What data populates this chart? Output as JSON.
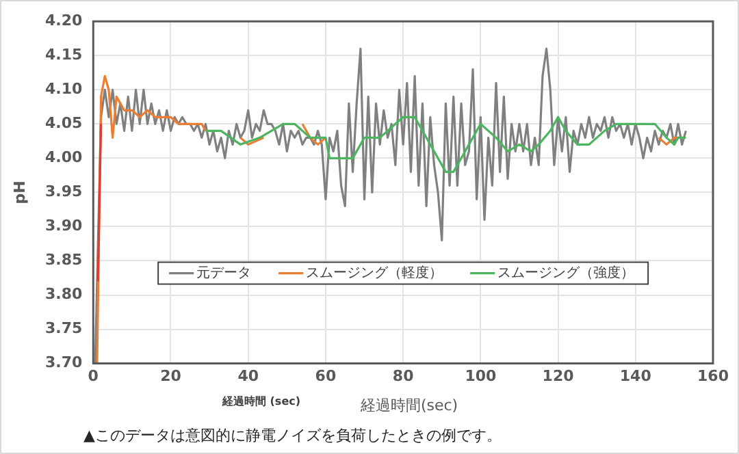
{
  "chart_data": {
    "type": "line",
    "xlabel": "経過時間(sec)",
    "ylabel": "pH",
    "annotations": [
      "経過時間 (sec)",
      "▲このデータは意図的に静電ノイズを負荷したときの例です。"
    ],
    "xlim": [
      0,
      160
    ],
    "xticks": [
      0,
      20,
      40,
      60,
      80,
      100,
      120,
      140,
      160
    ],
    "ylim": [
      3.7,
      4.2
    ],
    "yticks": [
      {
        "value": 3.7,
        "label": "3.70"
      },
      {
        "value": 3.75,
        "label": "3.75"
      },
      {
        "value": 3.8,
        "label": "3.80"
      },
      {
        "value": 3.85,
        "label": "3.85"
      },
      {
        "value": 3.9,
        "label": "3.90"
      },
      {
        "value": 3.95,
        "label": "3.95"
      },
      {
        "value": 4.0,
        "label": "4.00"
      },
      {
        "value": 4.05,
        "label": "4.05"
      },
      {
        "value": 4.1,
        "label": "4.10"
      },
      {
        "value": 4.15,
        "label": "4.15"
      },
      {
        "value": 4.2,
        "label": "4.20"
      }
    ],
    "grid": true,
    "legend": "bottom",
    "marker": "none",
    "line_style": "solid",
    "series": [
      {
        "name": "元データ",
        "color": "#808080",
        "x": [
          0.5,
          2,
          3,
          4,
          5,
          6,
          7,
          8,
          9,
          10,
          11,
          12,
          13,
          14,
          15,
          16,
          17,
          18,
          19,
          20,
          21,
          22,
          23,
          24,
          25,
          26,
          27,
          28,
          29,
          30,
          31,
          32,
          33,
          34,
          35,
          36,
          37,
          38,
          39,
          40,
          41,
          42,
          43,
          44,
          45,
          46,
          47,
          48,
          49,
          50,
          51,
          52,
          53,
          54,
          55,
          56,
          57,
          58,
          59,
          60,
          61,
          62,
          63,
          64,
          65,
          66,
          67,
          68,
          69,
          70,
          71,
          72,
          73,
          74,
          75,
          76,
          77,
          78,
          79,
          80,
          81,
          82,
          83,
          84,
          85,
          86,
          87,
          88,
          89,
          90,
          91,
          92,
          93,
          94,
          95,
          96,
          97,
          98,
          99,
          100,
          101,
          102,
          103,
          104,
          105,
          106,
          107,
          108,
          109,
          110,
          111,
          112,
          113,
          114,
          115,
          116,
          117,
          118,
          119,
          120,
          121,
          122,
          123,
          124,
          125,
          126,
          127,
          128,
          129,
          130,
          131,
          132,
          133,
          134,
          135,
          136,
          137,
          138,
          139,
          140,
          141,
          142,
          143,
          144,
          145,
          146,
          147,
          148,
          149,
          150,
          151,
          152,
          153
        ],
        "values": [
          3.7,
          4.06,
          4.1,
          4.06,
          4.1,
          4.05,
          4.08,
          4.04,
          4.09,
          4.04,
          4.1,
          4.05,
          4.1,
          4.05,
          4.08,
          4.05,
          4.07,
          4.04,
          4.07,
          4.04,
          4.06,
          4.05,
          4.06,
          4.05,
          4.05,
          4.04,
          4.05,
          4.03,
          4.05,
          4.02,
          4.04,
          4.01,
          4.03,
          4.0,
          4.04,
          4.02,
          4.05,
          4.03,
          4.04,
          4.07,
          4.03,
          4.05,
          4.04,
          4.07,
          4.05,
          4.05,
          4.04,
          4.02,
          4.05,
          4.01,
          4.04,
          4.03,
          4.04,
          4.02,
          4.03,
          4.03,
          4.02,
          4.04,
          4.02,
          3.94,
          4.03,
          4.01,
          4.04,
          3.96,
          3.93,
          4.08,
          3.98,
          4.08,
          4.16,
          3.94,
          4.09,
          3.95,
          4.08,
          4.02,
          4.07,
          4.03,
          4.05,
          3.99,
          4.1,
          4.02,
          4.11,
          3.98,
          4.12,
          3.96,
          4.08,
          3.93,
          4.06,
          3.99,
          3.95,
          3.88,
          4.08,
          3.96,
          4.09,
          3.96,
          4.08,
          3.99,
          4.01,
          4.13,
          3.94,
          4.06,
          3.91,
          4.03,
          3.96,
          4.11,
          3.98,
          4.09,
          3.97,
          4.05,
          4.01,
          4.05,
          4.01,
          4.05,
          3.99,
          4.03,
          3.99,
          4.12,
          4.16,
          4.1,
          3.99,
          4.06,
          4.01,
          4.06,
          3.98,
          4.04,
          4.02,
          4.05,
          4.03,
          4.06,
          4.03,
          4.05,
          4.04,
          4.06,
          4.03,
          4.06,
          4.04,
          4.05,
          4.03,
          4.05,
          4.02,
          4.05,
          4.03,
          4.0,
          4.03,
          4.01,
          4.04,
          4.02,
          4.04,
          4.03,
          4.05,
          4.02,
          4.05,
          4.02,
          4.04
        ]
      },
      {
        "name": "スムージング（軽度）",
        "color": "#ed7d31",
        "x": [
          1,
          2,
          3,
          4,
          5,
          6,
          7,
          8,
          10,
          12,
          14,
          16,
          18,
          20,
          22,
          24,
          26,
          28,
          29,
          30,
          36,
          38,
          40,
          42,
          44,
          46,
          52,
          54,
          56,
          58,
          60,
          140,
          146,
          148,
          150,
          152
        ],
        "values": [
          3.7,
          4.09,
          4.12,
          4.1,
          4.03,
          4.09,
          4.08,
          4.07,
          4.07,
          4.06,
          4.07,
          4.06,
          4.06,
          4.06,
          4.05,
          4.05,
          4.05,
          4.05,
          4.04,
          null,
          null,
          4.03,
          4.02,
          4.025,
          4.03,
          null,
          null,
          4.05,
          4.03,
          4.02,
          4.03,
          null,
          4.03,
          4.02,
          4.03,
          4.03
        ]
      },
      {
        "name": "スムージング（強度）",
        "color": "#4cb560",
        "x": [
          29,
          33,
          38,
          43,
          49,
          52,
          56,
          60,
          61,
          67,
          70,
          74,
          76,
          78,
          80,
          83,
          91,
          93,
          100,
          104,
          107,
          110,
          113,
          115,
          118,
          120,
          122,
          125,
          128,
          132,
          135,
          145,
          148,
          150,
          151,
          153
        ],
        "values": [
          4.04,
          4.04,
          4.02,
          4.03,
          4.05,
          4.05,
          4.03,
          4.03,
          4.0,
          4.0,
          4.03,
          4.03,
          4.04,
          4.05,
          4.06,
          4.06,
          3.98,
          3.98,
          4.05,
          4.03,
          4.01,
          4.02,
          4.01,
          4.02,
          4.04,
          4.06,
          4.04,
          4.02,
          4.02,
          4.04,
          4.05,
          4.05,
          4.03,
          4.02,
          4.03,
          4.03
        ]
      },
      {
        "color": "#e03c31",
        "x": [
          1.2,
          2
        ],
        "values": [
          3.82,
          4.05
        ]
      }
    ]
  }
}
